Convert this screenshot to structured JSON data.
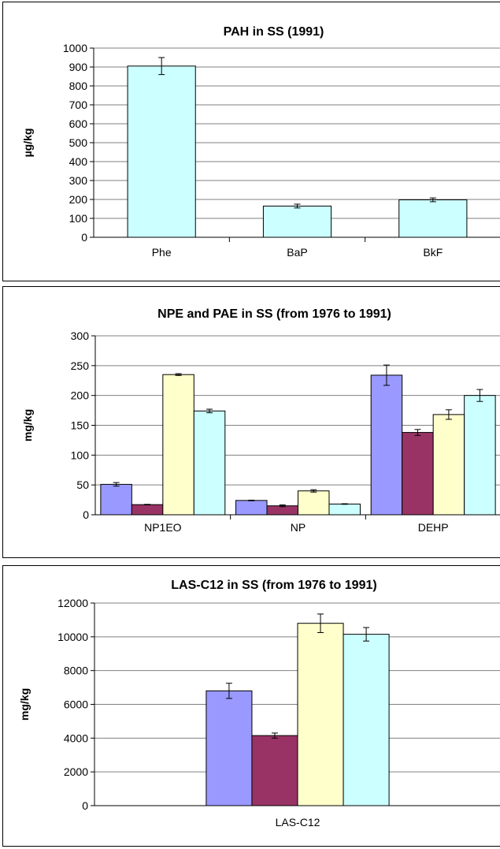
{
  "colors": {
    "series": [
      "#9999ff",
      "#993366",
      "#ffffcc",
      "#ccffff"
    ],
    "bar_stroke": "#000000",
    "grid": "#808080"
  },
  "chart_data": [
    {
      "type": "bar",
      "title": "PAH in SS (1991)",
      "xlabel": "",
      "ylabel": "µg/kg",
      "categories": [
        "Phe",
        "BaP",
        "BkF"
      ],
      "series": [
        {
          "values": [
            905,
            165,
            198
          ],
          "errors": [
            45,
            10,
            10
          ],
          "color": "#ccffff"
        }
      ],
      "ylim": [
        0,
        1000
      ],
      "yticks": [
        "0",
        "100",
        "200",
        "300",
        "400",
        "500",
        "600",
        "700",
        "800",
        "900",
        "1000"
      ],
      "grid": true,
      "legend": "none"
    },
    {
      "type": "bar",
      "title": "NPE and PAE in SS (from 1976 to 1991)",
      "xlabel": "",
      "ylabel": "mg/kg",
      "categories": [
        "NP1EO",
        "NP",
        "DEHP"
      ],
      "series": [
        {
          "values": [
            51,
            24,
            234
          ],
          "errors": [
            3,
            0.5,
            17
          ],
          "color": "#9999ff"
        },
        {
          "values": [
            17,
            15,
            138
          ],
          "errors": [
            0.5,
            1.5,
            5
          ],
          "color": "#993366"
        },
        {
          "values": [
            235,
            40,
            168
          ],
          "errors": [
            1.5,
            2,
            8
          ],
          "color": "#ffffcc"
        },
        {
          "values": [
            174,
            18,
            200
          ],
          "errors": [
            3,
            0.5,
            10
          ],
          "color": "#ccffff"
        }
      ],
      "ylim": [
        0,
        300
      ],
      "yticks": [
        "0",
        "50",
        "100",
        "150",
        "200",
        "250",
        "300"
      ],
      "grid": true,
      "legend": "none"
    },
    {
      "type": "bar",
      "title": "LAS-C12 in SS (from 1976 to 1991)",
      "xlabel": "",
      "ylabel": "mg/kg",
      "categories": [
        "LAS-C12"
      ],
      "series": [
        {
          "values": [
            6800
          ],
          "errors": [
            450
          ],
          "color": "#9999ff"
        },
        {
          "values": [
            4150
          ],
          "errors": [
            150
          ],
          "color": "#993366"
        },
        {
          "values": [
            10800
          ],
          "errors": [
            550
          ],
          "color": "#ffffcc"
        },
        {
          "values": [
            10150
          ],
          "errors": [
            400
          ],
          "color": "#ccffff"
        }
      ],
      "ylim": [
        0,
        12000
      ],
      "yticks": [
        "0",
        "2000",
        "4000",
        "6000",
        "8000",
        "10000",
        "12000"
      ],
      "grid": true,
      "legend": "none"
    }
  ]
}
